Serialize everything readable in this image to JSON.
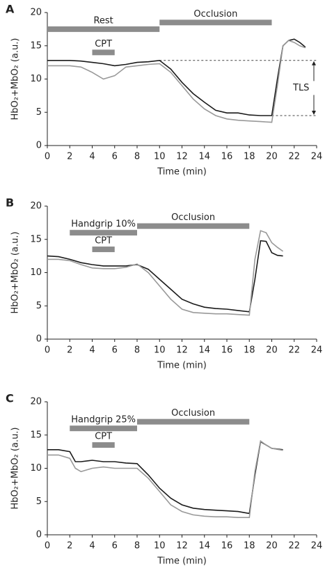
{
  "chart_data": [
    {
      "type": "line",
      "panel": "A",
      "x_label": "Time (min)",
      "y_label": "HbO₂+MbO₂ (a.u.)",
      "xlim": [
        0,
        24
      ],
      "xticks": [
        0,
        2,
        4,
        6,
        8,
        10,
        12,
        14,
        16,
        18,
        20,
        22,
        24
      ],
      "ylim": [
        0,
        20
      ],
      "yticks": [
        0,
        5,
        10,
        15,
        20
      ],
      "x": [
        0,
        1,
        2,
        3,
        4,
        5,
        6,
        7,
        8,
        9,
        10,
        11,
        12,
        13,
        14,
        15,
        16,
        17,
        18,
        19,
        20,
        20.5,
        21,
        21.5,
        22,
        22.5,
        23
      ],
      "series": [
        {
          "color": "#1a1a1a",
          "values": [
            12.8,
            12.8,
            12.8,
            12.7,
            12.5,
            12.3,
            12,
            12.2,
            12.5,
            12.6,
            12.8,
            11.5,
            9.5,
            7.8,
            6.5,
            5.3,
            4.9,
            4.9,
            4.6,
            4.5,
            4.5,
            10,
            15,
            15.8,
            16,
            15.5,
            14.8
          ]
        },
        {
          "color": "#999999",
          "values": [
            12,
            12,
            12,
            11.8,
            11,
            10,
            10.5,
            11.8,
            12,
            12.2,
            12.3,
            11,
            9,
            7,
            5.5,
            4.5,
            4,
            3.8,
            3.7,
            3.6,
            3.5,
            9,
            15,
            15.8,
            15.5,
            15,
            14.7
          ]
        }
      ],
      "periods": [
        {
          "label": "Rest",
          "start": 0,
          "end": 10,
          "y": 17.5
        },
        {
          "label": "Occlusion",
          "start": 10,
          "end": 20,
          "y": 18.5
        },
        {
          "label": "CPT",
          "start": 4,
          "end": 6,
          "y": 14
        }
      ],
      "reference_lines": [
        {
          "y": 12.8,
          "from": 10
        },
        {
          "y": 4.5,
          "from": 20
        }
      ],
      "span_label": "TLS"
    },
    {
      "type": "line",
      "panel": "B",
      "x_label": "Time (min)",
      "y_label": "HbO₂+MbO₂ (a.u.)",
      "xlim": [
        0,
        24
      ],
      "xticks": [
        0,
        2,
        4,
        6,
        8,
        10,
        12,
        14,
        16,
        18,
        20,
        22,
        24
      ],
      "ylim": [
        0,
        20
      ],
      "yticks": [
        0,
        5,
        10,
        15,
        20
      ],
      "x": [
        0,
        1,
        2,
        3,
        4,
        5,
        6,
        7,
        8,
        9,
        10,
        11,
        12,
        13,
        14,
        15,
        16,
        17,
        18,
        18.5,
        19,
        19.5,
        20,
        20.5,
        21
      ],
      "series": [
        {
          "color": "#1a1a1a",
          "values": [
            12.5,
            12.4,
            12,
            11.5,
            11.2,
            11,
            11,
            11,
            11.2,
            10.5,
            9,
            7.5,
            6,
            5.3,
            4.8,
            4.6,
            4.5,
            4.3,
            4.1,
            9,
            14.8,
            14.7,
            13,
            12.6,
            12.5
          ]
        },
        {
          "color": "#999999",
          "values": [
            12,
            12,
            11.8,
            11.2,
            10.7,
            10.6,
            10.6,
            10.8,
            11.3,
            10,
            8,
            6,
            4.5,
            4,
            3.9,
            3.8,
            3.8,
            3.7,
            3.6,
            12,
            16.3,
            16,
            14.5,
            13.8,
            13.2
          ]
        }
      ],
      "periods": [
        {
          "label": "Handgrip 10%",
          "start": 2,
          "end": 8,
          "y": 16
        },
        {
          "label": "Occlusion",
          "start": 8,
          "end": 18,
          "y": 17
        },
        {
          "label": "CPT",
          "start": 4,
          "end": 6,
          "y": 13.5
        }
      ]
    },
    {
      "type": "line",
      "panel": "C",
      "x_label": "Time (min)",
      "y_label": "HbO₂+MbO₂ (a.u.)",
      "xlim": [
        0,
        24
      ],
      "xticks": [
        0,
        2,
        4,
        6,
        8,
        10,
        12,
        14,
        16,
        18,
        20,
        22,
        24
      ],
      "ylim": [
        0,
        20
      ],
      "yticks": [
        0,
        5,
        10,
        15,
        20
      ],
      "x": [
        0,
        1,
        2,
        2.5,
        3,
        4,
        5,
        6,
        7,
        8,
        9,
        10,
        11,
        12,
        13,
        14,
        15,
        16,
        17,
        18,
        18.5,
        19,
        19.5,
        20,
        21
      ],
      "series": [
        {
          "color": "#1a1a1a",
          "values": [
            12.8,
            12.8,
            12.5,
            11,
            11,
            11.2,
            11,
            11,
            10.8,
            10.7,
            9,
            7,
            5.5,
            4.5,
            4,
            3.8,
            3.7,
            3.6,
            3.5,
            3.2,
            9,
            14,
            13.5,
            13,
            12.8
          ]
        },
        {
          "color": "#999999",
          "values": [
            12,
            12,
            11.5,
            10,
            9.5,
            10,
            10.2,
            10,
            10,
            10,
            8.5,
            6.5,
            4.5,
            3.5,
            3,
            2.8,
            2.7,
            2.7,
            2.6,
            2.6,
            9.5,
            14.1,
            13.5,
            13,
            12.7
          ]
        }
      ],
      "periods": [
        {
          "label": "Handgrip 25%",
          "start": 2,
          "end": 8,
          "y": 16
        },
        {
          "label": "Occlusion",
          "start": 8,
          "end": 18,
          "y": 17
        },
        {
          "label": "CPT",
          "start": 4,
          "end": 6,
          "y": 13.5
        }
      ]
    }
  ]
}
